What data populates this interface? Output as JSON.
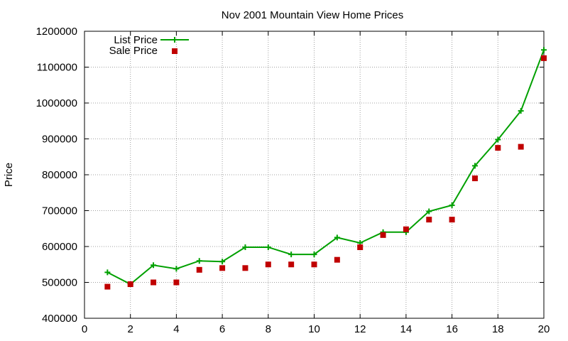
{
  "chart_data": {
    "type": "line",
    "title": "Nov 2001 Mountain View Home Prices",
    "xlabel": "",
    "ylabel": "Price",
    "xlim": [
      0,
      20
    ],
    "ylim": [
      400000,
      1200000
    ],
    "x_ticks": [
      0,
      2,
      4,
      6,
      8,
      10,
      12,
      14,
      16,
      18,
      20
    ],
    "y_ticks": [
      400000,
      500000,
      600000,
      700000,
      800000,
      900000,
      1000000,
      1100000,
      1200000
    ],
    "grid": true,
    "legend_position": "top-left",
    "series": [
      {
        "name": "List Price",
        "style": "line-with-plus-markers",
        "color": "#00a000",
        "x": [
          1,
          2,
          3,
          4,
          5,
          6,
          7,
          8,
          9,
          10,
          11,
          12,
          13,
          14,
          15,
          16,
          17,
          18,
          19,
          20
        ],
        "values": [
          528000,
          495000,
          548000,
          538000,
          560000,
          558000,
          598000,
          598000,
          578000,
          578000,
          625000,
          610000,
          640000,
          640000,
          698000,
          715000,
          825000,
          898000,
          978000,
          1148000
        ]
      },
      {
        "name": "Sale Price",
        "style": "square-markers",
        "color": "#c00000",
        "x": [
          1,
          2,
          3,
          4,
          5,
          6,
          7,
          8,
          9,
          10,
          11,
          12,
          13,
          14,
          15,
          16,
          17,
          18,
          19,
          20
        ],
        "values": [
          488000,
          495000,
          500000,
          500000,
          535000,
          540000,
          540000,
          550000,
          550000,
          550000,
          563000,
          598000,
          632000,
          648000,
          675000,
          675000,
          790000,
          875000,
          878000,
          1125000
        ]
      }
    ]
  }
}
